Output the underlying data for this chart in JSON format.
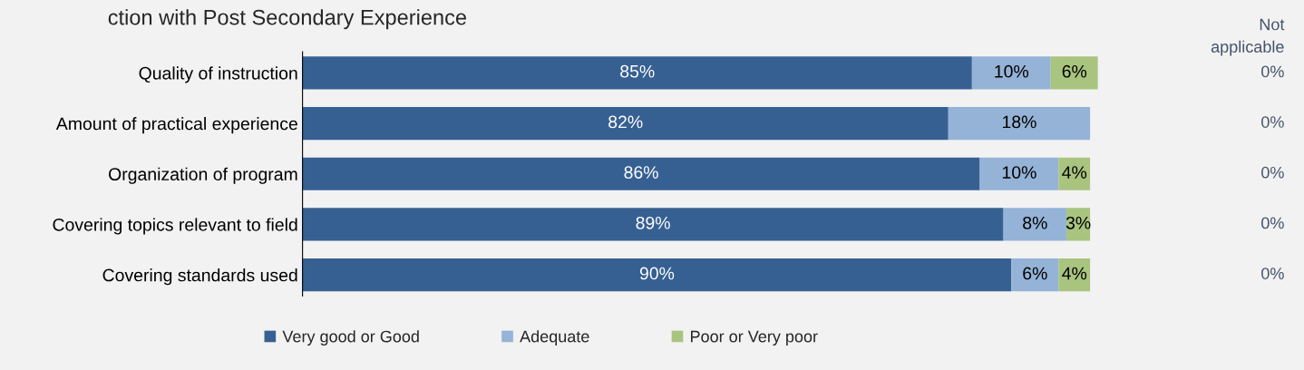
{
  "chart_data": {
    "type": "bar",
    "orientation": "horizontal",
    "stacked": true,
    "title": "ction with Post Secondary Experience",
    "categories": [
      "Quality of instruction",
      "Amount of practical experience",
      "Organization of program",
      "Covering topics relevant to field",
      "Covering standards used"
    ],
    "series": [
      {
        "name": "Very good or Good",
        "color": "#376092",
        "values": [
          85,
          82,
          86,
          89,
          90
        ],
        "value_labels": [
          "85%",
          "82%",
          "86%",
          "89%",
          "90%"
        ]
      },
      {
        "name": "Adequate",
        "color": "#95b3d7",
        "values": [
          10,
          18,
          10,
          8,
          6
        ],
        "value_labels": [
          "10%",
          "18%",
          "10%",
          "8%",
          "6%"
        ]
      },
      {
        "name": "Poor or Very poor",
        "color": "#a9c47f",
        "values": [
          6,
          null,
          4,
          3,
          4
        ],
        "value_labels": [
          "6%",
          null,
          "4%",
          "3%",
          "4%"
        ]
      }
    ],
    "annotations": [
      "Not\napplicable",
      "0%",
      "0%",
      "0%",
      "0%",
      "0%"
    ],
    "legend": "bottom",
    "grid": false
  }
}
